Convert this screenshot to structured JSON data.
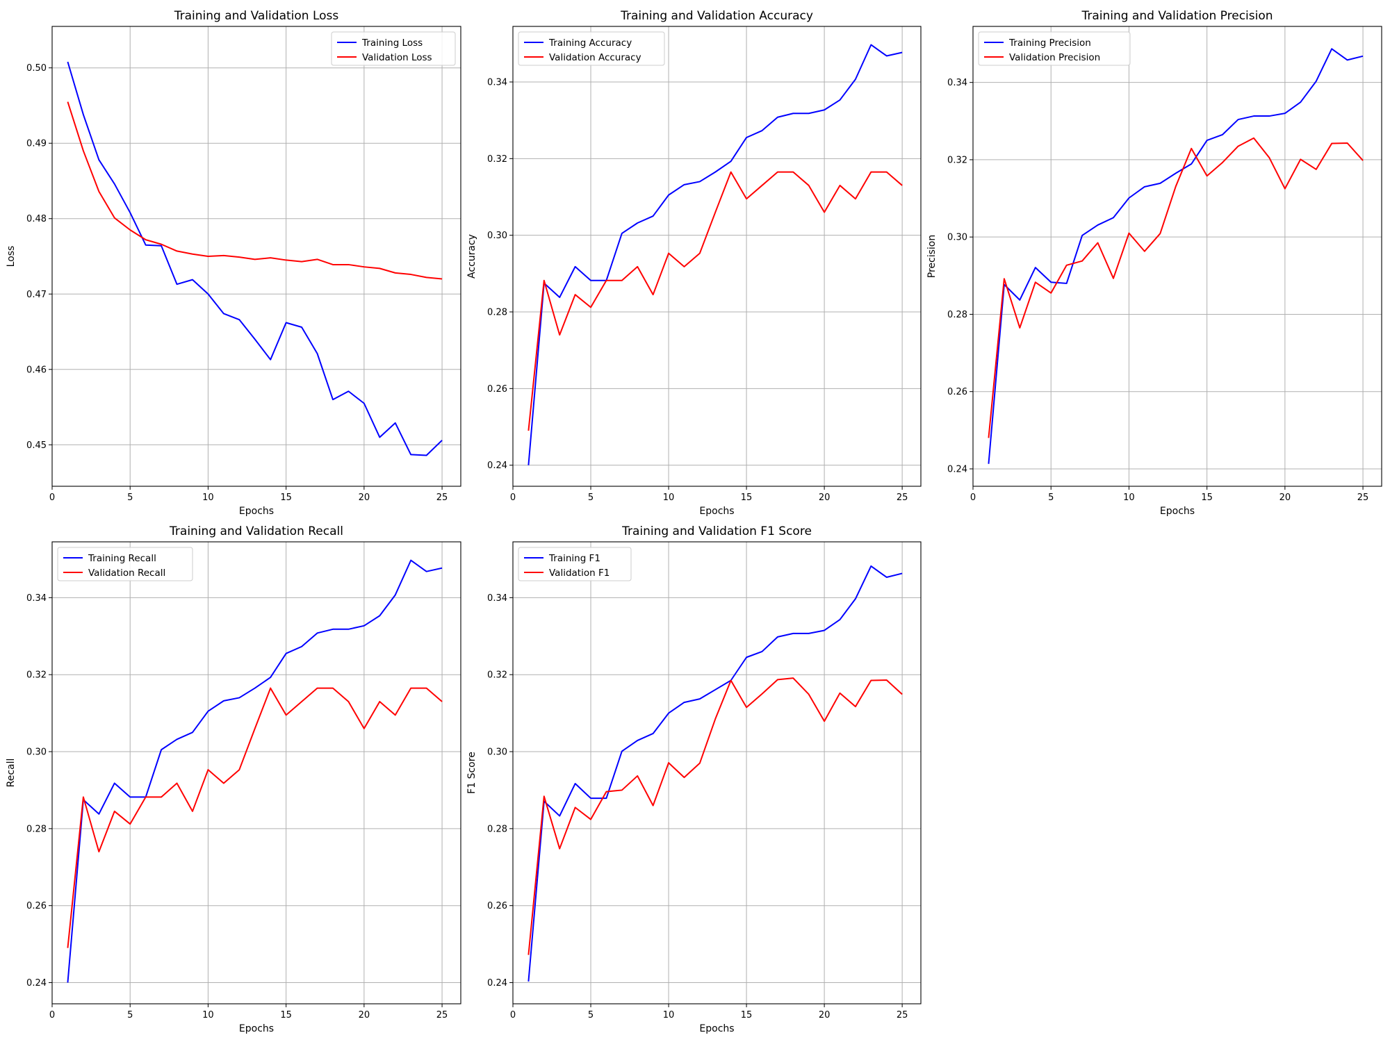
{
  "colors": {
    "training": "#0000ff",
    "validation": "#ff0000",
    "grid": "#b0b0b0",
    "axes": "#000000",
    "legend_border": "#cccccc"
  },
  "chart_data": [
    {
      "type": "line",
      "title": "Training and Validation Loss",
      "xlabel": "Epochs",
      "ylabel": "Loss",
      "xlim": [
        0,
        26.2
      ],
      "ylim": [
        0.4445,
        0.5055
      ],
      "xticks": [
        0,
        5,
        10,
        15,
        20,
        25
      ],
      "xtick_labels": [
        "0",
        "5",
        "10",
        "15",
        "20",
        "25"
      ],
      "yticks": [
        0.45,
        0.46,
        0.47,
        0.48,
        0.49,
        0.5
      ],
      "ytick_labels": [
        "0.45",
        "0.46",
        "0.47",
        "0.48",
        "0.49",
        "0.50"
      ],
      "grid": true,
      "legend_position": "top-right",
      "x": [
        1,
        2,
        3,
        4,
        5,
        6,
        7,
        8,
        9,
        10,
        11,
        12,
        13,
        14,
        15,
        16,
        17,
        18,
        19,
        20,
        21,
        22,
        23,
        24,
        25
      ],
      "series": [
        {
          "name": "Training Loss",
          "color": "#0000ff",
          "values": [
            0.5008,
            0.4938,
            0.4878,
            0.4846,
            0.4808,
            0.4765,
            0.4764,
            0.4713,
            0.4719,
            0.47,
            0.4674,
            0.4666,
            0.464,
            0.4613,
            0.4662,
            0.4656,
            0.4621,
            0.456,
            0.4571,
            0.4555,
            0.451,
            0.4529,
            0.4487,
            0.4486,
            0.4506
          ]
        },
        {
          "name": "Validation Loss",
          "color": "#ff0000",
          "values": [
            0.4955,
            0.489,
            0.4836,
            0.4801,
            0.4785,
            0.4772,
            0.4766,
            0.4757,
            0.4753,
            0.475,
            0.4751,
            0.4749,
            0.4746,
            0.4748,
            0.4745,
            0.4743,
            0.4746,
            0.4739,
            0.4739,
            0.4736,
            0.4734,
            0.4728,
            0.4726,
            0.4722,
            0.472
          ]
        }
      ]
    },
    {
      "type": "line",
      "title": "Training and Validation Accuracy",
      "xlabel": "Epochs",
      "ylabel": "Accuracy",
      "xlim": [
        0,
        26.2
      ],
      "ylim": [
        0.2345,
        0.3545
      ],
      "xticks": [
        0,
        5,
        10,
        15,
        20,
        25
      ],
      "xtick_labels": [
        "0",
        "5",
        "10",
        "15",
        "20",
        "25"
      ],
      "yticks": [
        0.24,
        0.26,
        0.28,
        0.3,
        0.32,
        0.34
      ],
      "ytick_labels": [
        "0.24",
        "0.26",
        "0.28",
        "0.30",
        "0.32",
        "0.34"
      ],
      "grid": true,
      "legend_position": "top-left",
      "x": [
        1,
        2,
        3,
        4,
        5,
        6,
        7,
        8,
        9,
        10,
        11,
        12,
        13,
        14,
        15,
        16,
        17,
        18,
        19,
        20,
        21,
        22,
        23,
        24,
        25
      ],
      "series": [
        {
          "name": "Training Accuracy",
          "color": "#0000ff",
          "values": [
            0.24,
            0.2875,
            0.2838,
            0.2918,
            0.2882,
            0.2882,
            0.3005,
            0.3032,
            0.305,
            0.3105,
            0.3132,
            0.314,
            0.3165,
            0.3193,
            0.3255,
            0.3273,
            0.3308,
            0.3318,
            0.3318,
            0.3327,
            0.3353,
            0.3407,
            0.3497,
            0.3468,
            0.3477
          ]
        },
        {
          "name": "Validation Accuracy",
          "color": "#ff0000",
          "values": [
            0.249,
            0.2882,
            0.274,
            0.2845,
            0.2812,
            0.2882,
            0.2882,
            0.2918,
            0.2845,
            0.2953,
            0.2918,
            0.2953,
            0.306,
            0.3165,
            0.3095,
            0.313,
            0.3165,
            0.3165,
            0.313,
            0.306,
            0.313,
            0.3095,
            0.3165,
            0.3165,
            0.313
          ]
        }
      ]
    },
    {
      "type": "line",
      "title": "Training and Validation Precision",
      "xlabel": "Epochs",
      "ylabel": "Precision",
      "xlim": [
        0,
        26.2
      ],
      "ylim": [
        0.2355,
        0.3545
      ],
      "xticks": [
        0,
        5,
        10,
        15,
        20,
        25
      ],
      "xtick_labels": [
        "0",
        "5",
        "10",
        "15",
        "20",
        "25"
      ],
      "yticks": [
        0.24,
        0.26,
        0.28,
        0.3,
        0.32,
        0.34
      ],
      "ytick_labels": [
        "0.24",
        "0.26",
        "0.28",
        "0.30",
        "0.32",
        "0.34"
      ],
      "grid": true,
      "legend_position": "top-left",
      "x": [
        1,
        2,
        3,
        4,
        5,
        6,
        7,
        8,
        9,
        10,
        11,
        12,
        13,
        14,
        15,
        16,
        17,
        18,
        19,
        20,
        21,
        22,
        23,
        24,
        25
      ],
      "series": [
        {
          "name": "Training Precision",
          "color": "#0000ff",
          "values": [
            0.2413,
            0.2877,
            0.2837,
            0.2921,
            0.2883,
            0.288,
            0.3004,
            0.3031,
            0.305,
            0.3101,
            0.313,
            0.3139,
            0.3165,
            0.3189,
            0.325,
            0.3265,
            0.3304,
            0.3313,
            0.3313,
            0.332,
            0.3349,
            0.3403,
            0.3487,
            0.3458,
            0.3468
          ]
        },
        {
          "name": "Validation Precision",
          "color": "#ff0000",
          "values": [
            0.248,
            0.2892,
            0.2765,
            0.2883,
            0.2855,
            0.2927,
            0.2938,
            0.2985,
            0.2893,
            0.301,
            0.2963,
            0.3009,
            0.3131,
            0.3229,
            0.3158,
            0.3193,
            0.3235,
            0.3256,
            0.3205,
            0.3125,
            0.3201,
            0.3175,
            0.3242,
            0.3243,
            0.3198
          ]
        }
      ]
    },
    {
      "type": "line",
      "title": "Training and Validation Recall",
      "xlabel": "Epochs",
      "ylabel": "Recall",
      "xlim": [
        0,
        26.2
      ],
      "ylim": [
        0.2345,
        0.3545
      ],
      "xticks": [
        0,
        5,
        10,
        15,
        20,
        25
      ],
      "xtick_labels": [
        "0",
        "5",
        "10",
        "15",
        "20",
        "25"
      ],
      "yticks": [
        0.24,
        0.26,
        0.28,
        0.3,
        0.32,
        0.34
      ],
      "ytick_labels": [
        "0.24",
        "0.26",
        "0.28",
        "0.30",
        "0.32",
        "0.34"
      ],
      "grid": true,
      "legend_position": "top-left",
      "x": [
        1,
        2,
        3,
        4,
        5,
        6,
        7,
        8,
        9,
        10,
        11,
        12,
        13,
        14,
        15,
        16,
        17,
        18,
        19,
        20,
        21,
        22,
        23,
        24,
        25
      ],
      "series": [
        {
          "name": "Training Recall",
          "color": "#0000ff",
          "values": [
            0.24,
            0.2875,
            0.2838,
            0.2918,
            0.2882,
            0.2882,
            0.3005,
            0.3032,
            0.305,
            0.3105,
            0.3132,
            0.314,
            0.3165,
            0.3193,
            0.3255,
            0.3273,
            0.3308,
            0.3318,
            0.3318,
            0.3327,
            0.3353,
            0.3407,
            0.3497,
            0.3468,
            0.3477
          ]
        },
        {
          "name": "Validation Recall",
          "color": "#ff0000",
          "values": [
            0.249,
            0.2882,
            0.274,
            0.2845,
            0.2812,
            0.2882,
            0.2882,
            0.2918,
            0.2845,
            0.2953,
            0.2918,
            0.2953,
            0.306,
            0.3165,
            0.3095,
            0.313,
            0.3165,
            0.3165,
            0.313,
            0.306,
            0.313,
            0.3095,
            0.3165,
            0.3165,
            0.313
          ]
        }
      ]
    },
    {
      "type": "line",
      "title": "Training and Validation F1 Score",
      "xlabel": "Epochs",
      "ylabel": "F1 Score",
      "xlim": [
        0,
        26.2
      ],
      "ylim": [
        0.2345,
        0.3545
      ],
      "xticks": [
        0,
        5,
        10,
        15,
        20,
        25
      ],
      "xtick_labels": [
        "0",
        "5",
        "10",
        "15",
        "20",
        "25"
      ],
      "yticks": [
        0.24,
        0.26,
        0.28,
        0.3,
        0.32,
        0.34
      ],
      "ytick_labels": [
        "0.24",
        "0.26",
        "0.28",
        "0.30",
        "0.32",
        "0.34"
      ],
      "grid": true,
      "legend_position": "top-left",
      "x": [
        1,
        2,
        3,
        4,
        5,
        6,
        7,
        8,
        9,
        10,
        11,
        12,
        13,
        14,
        15,
        16,
        17,
        18,
        19,
        20,
        21,
        22,
        23,
        24,
        25
      ],
      "series": [
        {
          "name": "Training F1",
          "color": "#0000ff",
          "values": [
            0.2403,
            0.2871,
            0.2833,
            0.2917,
            0.2879,
            0.2879,
            0.3001,
            0.3029,
            0.3047,
            0.31,
            0.3128,
            0.3137,
            0.3161,
            0.3185,
            0.3245,
            0.326,
            0.3298,
            0.3307,
            0.3307,
            0.3315,
            0.3343,
            0.3397,
            0.3482,
            0.3453,
            0.3463
          ]
        },
        {
          "name": "Validation F1",
          "color": "#ff0000",
          "values": [
            0.2472,
            0.2884,
            0.2748,
            0.2855,
            0.2824,
            0.2896,
            0.29,
            0.2937,
            0.286,
            0.2971,
            0.2933,
            0.297,
            0.3085,
            0.3185,
            0.3115,
            0.315,
            0.3187,
            0.3191,
            0.3149,
            0.3079,
            0.3152,
            0.3117,
            0.3185,
            0.3186,
            0.3149
          ]
        }
      ]
    }
  ]
}
